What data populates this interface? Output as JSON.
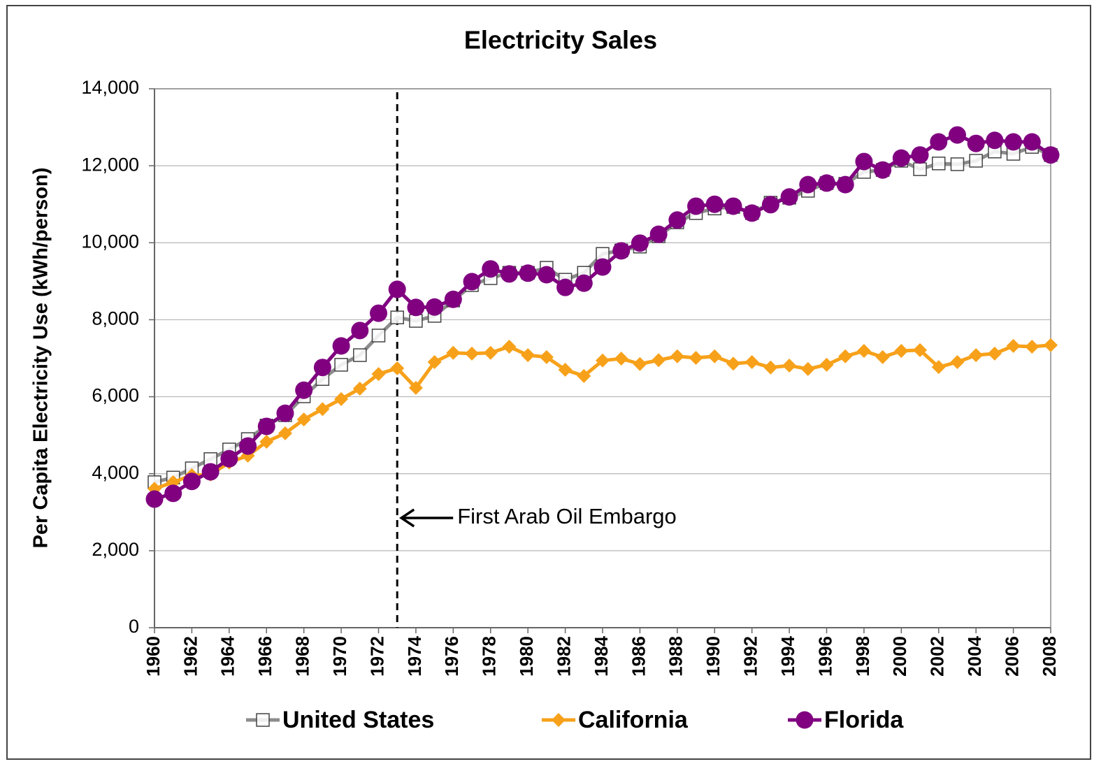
{
  "chart_data": {
    "type": "line",
    "title": "Electricity Sales",
    "y_label": "Per Capita Electricity Use (kWh/person)",
    "x": [
      1960,
      1961,
      1962,
      1963,
      1964,
      1965,
      1966,
      1967,
      1968,
      1969,
      1970,
      1971,
      1972,
      1973,
      1974,
      1975,
      1976,
      1977,
      1978,
      1979,
      1980,
      1981,
      1982,
      1983,
      1984,
      1985,
      1986,
      1987,
      1988,
      1989,
      1990,
      1991,
      1992,
      1993,
      1994,
      1995,
      1996,
      1997,
      1998,
      1999,
      2000,
      2001,
      2002,
      2003,
      2004,
      2005,
      2006,
      2007,
      2008
    ],
    "xlim": [
      1960,
      2008
    ],
    "xticks": [
      1960,
      1962,
      1964,
      1966,
      1968,
      1970,
      1972,
      1974,
      1976,
      1978,
      1980,
      1982,
      1984,
      1986,
      1988,
      1990,
      1992,
      1994,
      1996,
      1998,
      2000,
      2002,
      2004,
      2006,
      2008
    ],
    "ylim": [
      0,
      14000
    ],
    "yticks": [
      {
        "value": 0,
        "label": "0"
      },
      {
        "value": 2000,
        "label": "2,000"
      },
      {
        "value": 4000,
        "label": "4,000"
      },
      {
        "value": 6000,
        "label": "6,000"
      },
      {
        "value": 8000,
        "label": "8,000"
      },
      {
        "value": 10000,
        "label": "10,000"
      },
      {
        "value": 12000,
        "label": "12,000"
      },
      {
        "value": 14000,
        "label": "14,000"
      }
    ],
    "grid": true,
    "legend": "bottom",
    "annotation": {
      "text": "First Arab Oil Embargo",
      "x": 1973
    },
    "series": [
      {
        "name": "United States",
        "color": "#8c8c8c",
        "marker": "square",
        "values": [
          3780,
          3900,
          4140,
          4380,
          4630,
          4900,
          5250,
          5520,
          6010,
          6460,
          6830,
          7080,
          7590,
          8060,
          7970,
          8100,
          8500,
          8900,
          9080,
          9220,
          9220,
          9350,
          9040,
          9220,
          9710,
          9800,
          9900,
          10170,
          10530,
          10770,
          10890,
          10930,
          10770,
          11040,
          11170,
          11350,
          11550,
          11530,
          11840,
          11890,
          12130,
          11910,
          12060,
          12040,
          12130,
          12370,
          12310,
          12490,
          12280
        ]
      },
      {
        "name": "California",
        "color": "#f7a11a",
        "marker": "diamond",
        "values": [
          3610,
          3780,
          3960,
          3980,
          4290,
          4470,
          4830,
          5050,
          5410,
          5680,
          5940,
          6210,
          6590,
          6740,
          6230,
          6900,
          7140,
          7120,
          7140,
          7300,
          7080,
          7030,
          6700,
          6540,
          6940,
          6990,
          6850,
          6950,
          7050,
          7010,
          7050,
          6860,
          6900,
          6760,
          6810,
          6720,
          6830,
          7050,
          7190,
          7030,
          7190,
          7210,
          6770,
          6900,
          7080,
          7120,
          7320,
          7300,
          7340
        ]
      },
      {
        "name": "Florida",
        "color": "#800080",
        "marker": "circle",
        "values": [
          3340,
          3490,
          3800,
          4050,
          4390,
          4720,
          5230,
          5570,
          6170,
          6760,
          7320,
          7720,
          8170,
          8790,
          8320,
          8330,
          8530,
          8990,
          9320,
          9190,
          9210,
          9170,
          8840,
          8950,
          9370,
          9790,
          9990,
          10220,
          10590,
          10950,
          11000,
          10950,
          10770,
          10990,
          11190,
          11510,
          11550,
          11510,
          12110,
          11890,
          12200,
          12280,
          12620,
          12800,
          12580,
          12660,
          12620,
          12620,
          12280
        ]
      }
    ]
  }
}
